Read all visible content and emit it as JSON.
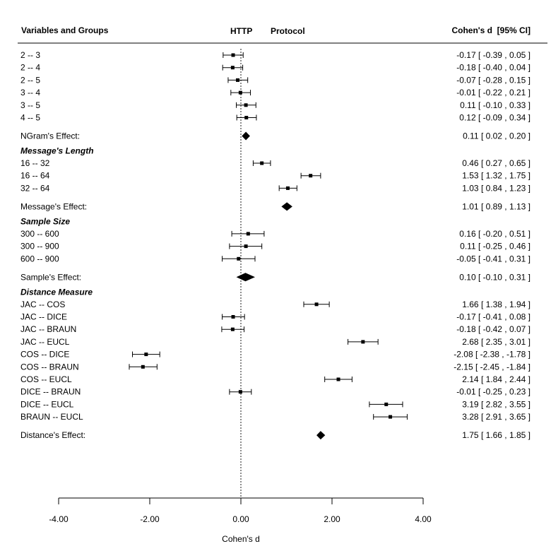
{
  "chart_data": {
    "type": "forest",
    "header": {
      "left": "Variables and Groups",
      "mid1": "HTTP",
      "mid2": "Protocol",
      "right": "Cohen's d  [95% CI]"
    },
    "xlabel": "Cohen's d",
    "xlim": [
      -4,
      4
    ],
    "ticks": [
      -4,
      -2,
      0,
      2,
      4
    ],
    "tick_labels": [
      "-4.00",
      "-2.00",
      "0.00",
      "2.00",
      "4.00"
    ],
    "rows": [
      {
        "kind": "study",
        "label": "2 -- 3",
        "est": -0.17,
        "lo": -0.39,
        "hi": 0.05,
        "ci_text": "-0.17 [ -0.39 ,  0.05 ]"
      },
      {
        "kind": "study",
        "label": "2 -- 4",
        "est": -0.18,
        "lo": -0.4,
        "hi": 0.04,
        "ci_text": "-0.18 [ -0.40 ,  0.04 ]"
      },
      {
        "kind": "study",
        "label": "2 -- 5",
        "est": -0.07,
        "lo": -0.28,
        "hi": 0.15,
        "ci_text": "-0.07 [ -0.28 ,  0.15 ]"
      },
      {
        "kind": "study",
        "label": "3 -- 4",
        "est": -0.01,
        "lo": -0.22,
        "hi": 0.21,
        "ci_text": "-0.01 [ -0.22 ,  0.21 ]"
      },
      {
        "kind": "study",
        "label": "3 -- 5",
        "est": 0.11,
        "lo": -0.1,
        "hi": 0.33,
        "ci_text": "0.11 [ -0.10 ,  0.33 ]"
      },
      {
        "kind": "study",
        "label": "4 -- 5",
        "est": 0.12,
        "lo": -0.09,
        "hi": 0.34,
        "ci_text": "0.12 [ -0.09 ,  0.34 ]"
      },
      {
        "kind": "summary",
        "label": "NGram's Effect:",
        "est": 0.11,
        "lo": 0.02,
        "hi": 0.2,
        "ci_text": "0.11 [ 0.02 , 0.20 ]"
      },
      {
        "kind": "group",
        "label": "Message's Length"
      },
      {
        "kind": "study",
        "label": "16 -- 32",
        "est": 0.46,
        "lo": 0.27,
        "hi": 0.65,
        "ci_text": "0.46 [  0.27 ,  0.65 ]"
      },
      {
        "kind": "study",
        "label": "16 -- 64",
        "est": 1.53,
        "lo": 1.32,
        "hi": 1.75,
        "ci_text": "1.53 [  1.32 ,  1.75 ]"
      },
      {
        "kind": "study",
        "label": "32 -- 64",
        "est": 1.03,
        "lo": 0.84,
        "hi": 1.23,
        "ci_text": "1.03 [  0.84 ,  1.23 ]"
      },
      {
        "kind": "summary",
        "label": "Message's Effect:",
        "est": 1.01,
        "lo": 0.89,
        "hi": 1.13,
        "ci_text": "1.01 [ 0.89 , 1.13 ]"
      },
      {
        "kind": "group",
        "label": "Sample Size"
      },
      {
        "kind": "study",
        "label": "300 -- 600",
        "est": 0.16,
        "lo": -0.2,
        "hi": 0.51,
        "ci_text": "0.16 [ -0.20 ,  0.51 ]"
      },
      {
        "kind": "study",
        "label": "300 -- 900",
        "est": 0.11,
        "lo": -0.25,
        "hi": 0.46,
        "ci_text": "0.11 [ -0.25 ,  0.46 ]"
      },
      {
        "kind": "study",
        "label": "600 -- 900",
        "est": -0.05,
        "lo": -0.41,
        "hi": 0.31,
        "ci_text": "-0.05 [ -0.41 ,  0.31 ]"
      },
      {
        "kind": "summary",
        "label": "Sample's Effect:",
        "est": 0.1,
        "lo": -0.1,
        "hi": 0.31,
        "ci_text": "0.10 [ -0.10 , 0.31 ]"
      },
      {
        "kind": "group",
        "label": "Distance Measure"
      },
      {
        "kind": "study",
        "label": "JAC -- COS",
        "est": 1.66,
        "lo": 1.38,
        "hi": 1.94,
        "ci_text": "1.66 [  1.38 ,  1.94 ]"
      },
      {
        "kind": "study",
        "label": "JAC -- DICE",
        "est": -0.17,
        "lo": -0.41,
        "hi": 0.08,
        "ci_text": "-0.17 [ -0.41 ,  0.08 ]"
      },
      {
        "kind": "study",
        "label": "JAC -- BRAUN",
        "est": -0.18,
        "lo": -0.42,
        "hi": 0.07,
        "ci_text": "-0.18 [ -0.42 ,  0.07 ]"
      },
      {
        "kind": "study",
        "label": "JAC -- EUCL",
        "est": 2.68,
        "lo": 2.35,
        "hi": 3.01,
        "ci_text": "2.68 [  2.35 ,  3.01 ]"
      },
      {
        "kind": "study",
        "label": "COS -- DICE",
        "est": -2.08,
        "lo": -2.38,
        "hi": -1.78,
        "ci_text": "-2.08 [ -2.38 , -1.78 ]"
      },
      {
        "kind": "study",
        "label": "COS -- BRAUN",
        "est": -2.15,
        "lo": -2.45,
        "hi": -1.84,
        "ci_text": "-2.15 [ -2.45 , -1.84 ]"
      },
      {
        "kind": "study",
        "label": "COS -- EUCL",
        "est": 2.14,
        "lo": 1.84,
        "hi": 2.44,
        "ci_text": "2.14 [  1.84 ,  2.44 ]"
      },
      {
        "kind": "study",
        "label": "DICE -- BRAUN",
        "est": -0.01,
        "lo": -0.25,
        "hi": 0.23,
        "ci_text": "-0.01 [ -0.25 ,  0.23 ]"
      },
      {
        "kind": "study",
        "label": "DICE -- EUCL",
        "est": 3.19,
        "lo": 2.82,
        "hi": 3.55,
        "ci_text": "3.19 [  2.82 ,  3.55 ]"
      },
      {
        "kind": "study",
        "label": "BRAUN -- EUCL",
        "est": 3.28,
        "lo": 2.91,
        "hi": 3.65,
        "ci_text": "3.28 [  2.91 ,  3.65 ]"
      },
      {
        "kind": "summary",
        "label": "Distance's Effect:",
        "est": 1.75,
        "lo": 1.66,
        "hi": 1.85,
        "ci_text": "1.75 [ 1.66 , 1.85 ]"
      }
    ]
  }
}
